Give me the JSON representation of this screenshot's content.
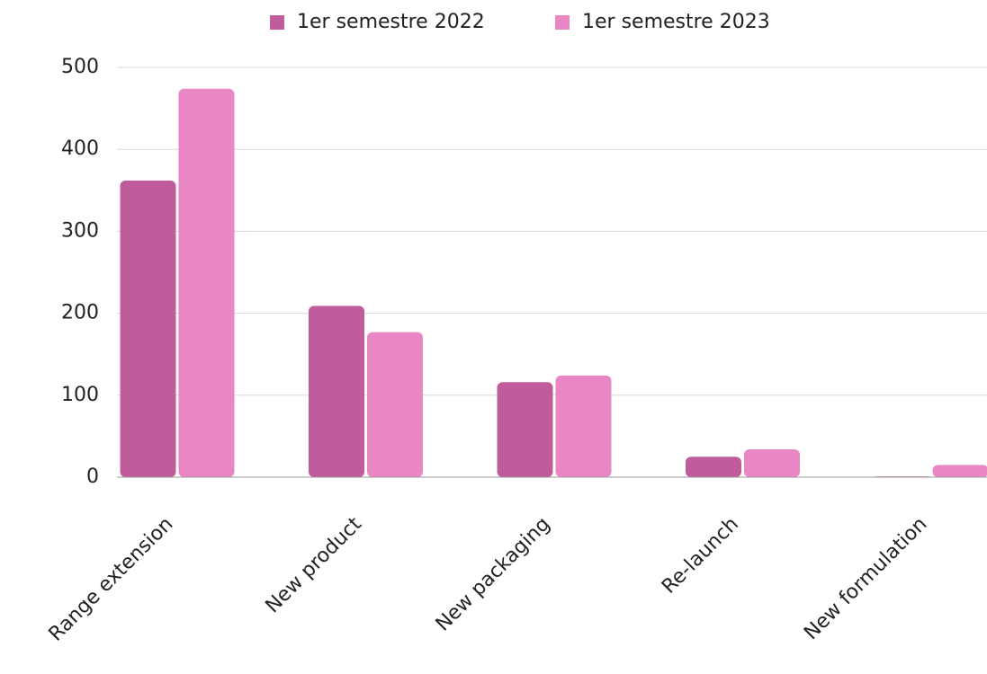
{
  "chart_data": {
    "type": "bar",
    "categories": [
      "Range extension",
      "New product",
      "New packaging",
      "Re-launch",
      "New formulation"
    ],
    "series": [
      {
        "name": "1er semestre 2022",
        "color": "#c05c9c",
        "values": [
          362,
          209,
          116,
          25,
          1
        ]
      },
      {
        "name": "1er semestre 2023",
        "color": "#e986c4",
        "values": [
          474,
          177,
          124,
          34,
          15
        ]
      }
    ],
    "ylim": [
      0,
      500
    ],
    "yticks": [
      0,
      100,
      200,
      300,
      400,
      500
    ],
    "grid": true,
    "legend": "top"
  }
}
